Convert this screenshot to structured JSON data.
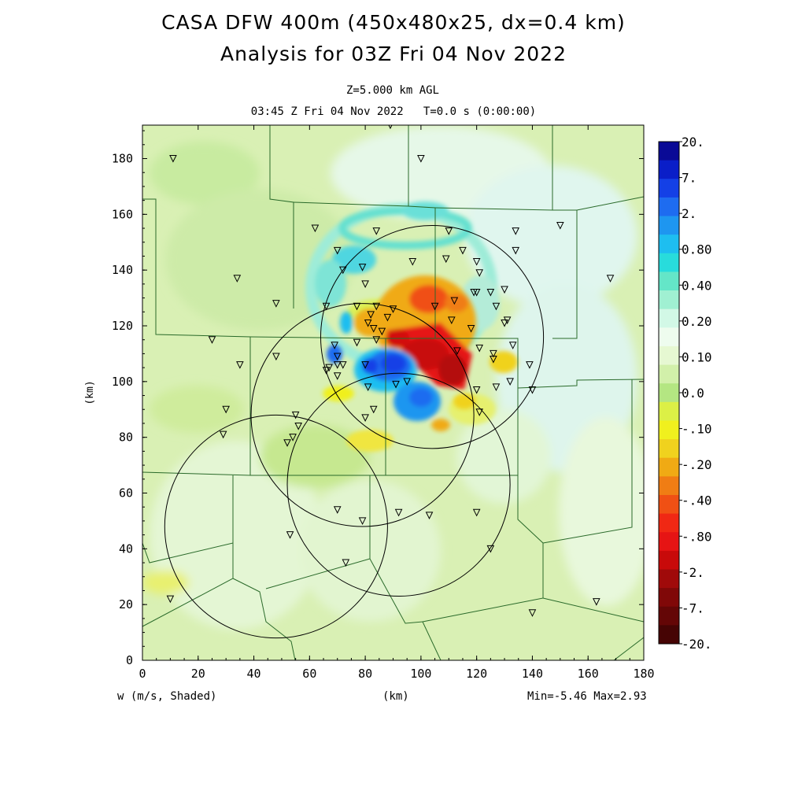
{
  "chart_data": {
    "type": "heatmap",
    "title": "CASA DFW 400m (450x480x25, dx=0.4 km)",
    "subtitle": "Analysis for 03Z Fri 04 Nov 2022",
    "level_label": "Z=5.000 km AGL",
    "time_label": "03:45 Z Fri 04 Nov 2022   T=0.0 s (0:00:00)",
    "xlabel": "(km)",
    "ylabel": "(km)",
    "variable_label": "w (m/s, Shaded)",
    "stats_label": "Min=-5.46 Max=2.93",
    "xlim": [
      0,
      180
    ],
    "ylim": [
      0,
      192
    ],
    "xticks": [
      "0",
      "20",
      "40",
      "60",
      "80",
      "100",
      "120",
      "140",
      "160",
      "180"
    ],
    "yticks": [
      "0",
      "20",
      "40",
      "60",
      "80",
      "100",
      "120",
      "140",
      "160",
      "180"
    ],
    "colorbar": {
      "labels": [
        "20.",
        "7.",
        "2.",
        "0.80",
        "0.40",
        "0.20",
        "0.10",
        "0.0",
        "-.10",
        "-.20",
        "-.40",
        "-.80",
        "-2.",
        "-7.",
        "-20."
      ],
      "colors": [
        "#0a0a96",
        "#0a1ec8",
        "#1440e6",
        "#1e6cf0",
        "#1e96f0",
        "#1ebef0",
        "#28dcdc",
        "#64e6c8",
        "#a0f0d2",
        "#d2f8e6",
        "#eefcee",
        "#e6f8d2",
        "#d2f0aa",
        "#b4e682",
        "#dcf046",
        "#f0f01e",
        "#f0d21e",
        "#f0aa14",
        "#f07d14",
        "#f05014",
        "#f02814",
        "#e61414",
        "#c80a0a",
        "#a00a0a",
        "#800808",
        "#640606",
        "#460404"
      ]
    },
    "radar_circles_km": [
      {
        "cx": 104,
        "cy": 116,
        "r": 40
      },
      {
        "cx": 79,
        "cy": 88,
        "r": 40
      },
      {
        "cx": 92,
        "cy": 63,
        "r": 40
      },
      {
        "cx": 48,
        "cy": 48,
        "r": 40
      }
    ],
    "stations_km": [
      [
        89,
        192
      ],
      [
        11,
        180
      ],
      [
        100,
        180
      ],
      [
        62,
        155
      ],
      [
        84,
        154
      ],
      [
        110,
        154
      ],
      [
        134,
        154
      ],
      [
        150,
        156
      ],
      [
        70,
        147
      ],
      [
        115,
        147
      ],
      [
        134,
        147
      ],
      [
        79,
        141
      ],
      [
        97,
        143
      ],
      [
        109,
        144
      ],
      [
        120,
        143
      ],
      [
        121,
        139
      ],
      [
        72,
        140
      ],
      [
        34,
        137
      ],
      [
        168,
        137
      ],
      [
        80,
        135
      ],
      [
        125,
        132
      ],
      [
        130,
        133
      ],
      [
        120,
        132
      ],
      [
        119,
        132
      ],
      [
        48,
        128
      ],
      [
        66,
        127
      ],
      [
        84,
        127
      ],
      [
        77,
        127
      ],
      [
        127,
        127
      ],
      [
        112,
        129
      ],
      [
        105,
        127
      ],
      [
        90,
        126
      ],
      [
        88,
        123
      ],
      [
        82,
        124
      ],
      [
        81,
        121
      ],
      [
        111,
        122
      ],
      [
        131,
        122
      ],
      [
        130,
        121
      ],
      [
        118,
        119
      ],
      [
        83,
        119
      ],
      [
        86,
        118
      ],
      [
        84,
        115
      ],
      [
        25,
        115
      ],
      [
        69,
        113
      ],
      [
        77,
        114
      ],
      [
        121,
        112
      ],
      [
        133,
        113
      ],
      [
        113,
        111
      ],
      [
        126,
        110
      ],
      [
        126,
        108
      ],
      [
        35,
        106
      ],
      [
        48,
        109
      ],
      [
        70,
        109
      ],
      [
        70,
        106
      ],
      [
        72,
        106
      ],
      [
        67,
        105
      ],
      [
        66,
        104
      ],
      [
        80,
        106
      ],
      [
        139,
        106
      ],
      [
        70,
        102
      ],
      [
        132,
        100
      ],
      [
        127,
        98
      ],
      [
        81,
        98
      ],
      [
        91,
        99
      ],
      [
        95,
        100
      ],
      [
        120,
        97
      ],
      [
        140,
        97
      ],
      [
        30,
        90
      ],
      [
        55,
        88
      ],
      [
        80,
        87
      ],
      [
        83,
        90
      ],
      [
        121,
        89
      ],
      [
        56,
        84
      ],
      [
        29,
        81
      ],
      [
        54,
        80
      ],
      [
        52,
        78
      ],
      [
        70,
        54
      ],
      [
        92,
        53
      ],
      [
        120,
        53
      ],
      [
        79,
        50
      ],
      [
        103,
        52
      ],
      [
        53,
        45
      ],
      [
        125,
        40
      ],
      [
        73,
        35
      ],
      [
        10,
        22
      ],
      [
        163,
        21
      ],
      [
        140,
        17
      ]
    ],
    "grid": false,
    "legend_placement": "right"
  },
  "footer": {
    "variable": "w (m/s, Shaded)",
    "xunit": "(km)",
    "stats": "Min=-5.46 Max=2.93"
  },
  "colors": {
    "background": "#ffffff",
    "field_base": "#d6efb0",
    "frame": "#000000"
  }
}
